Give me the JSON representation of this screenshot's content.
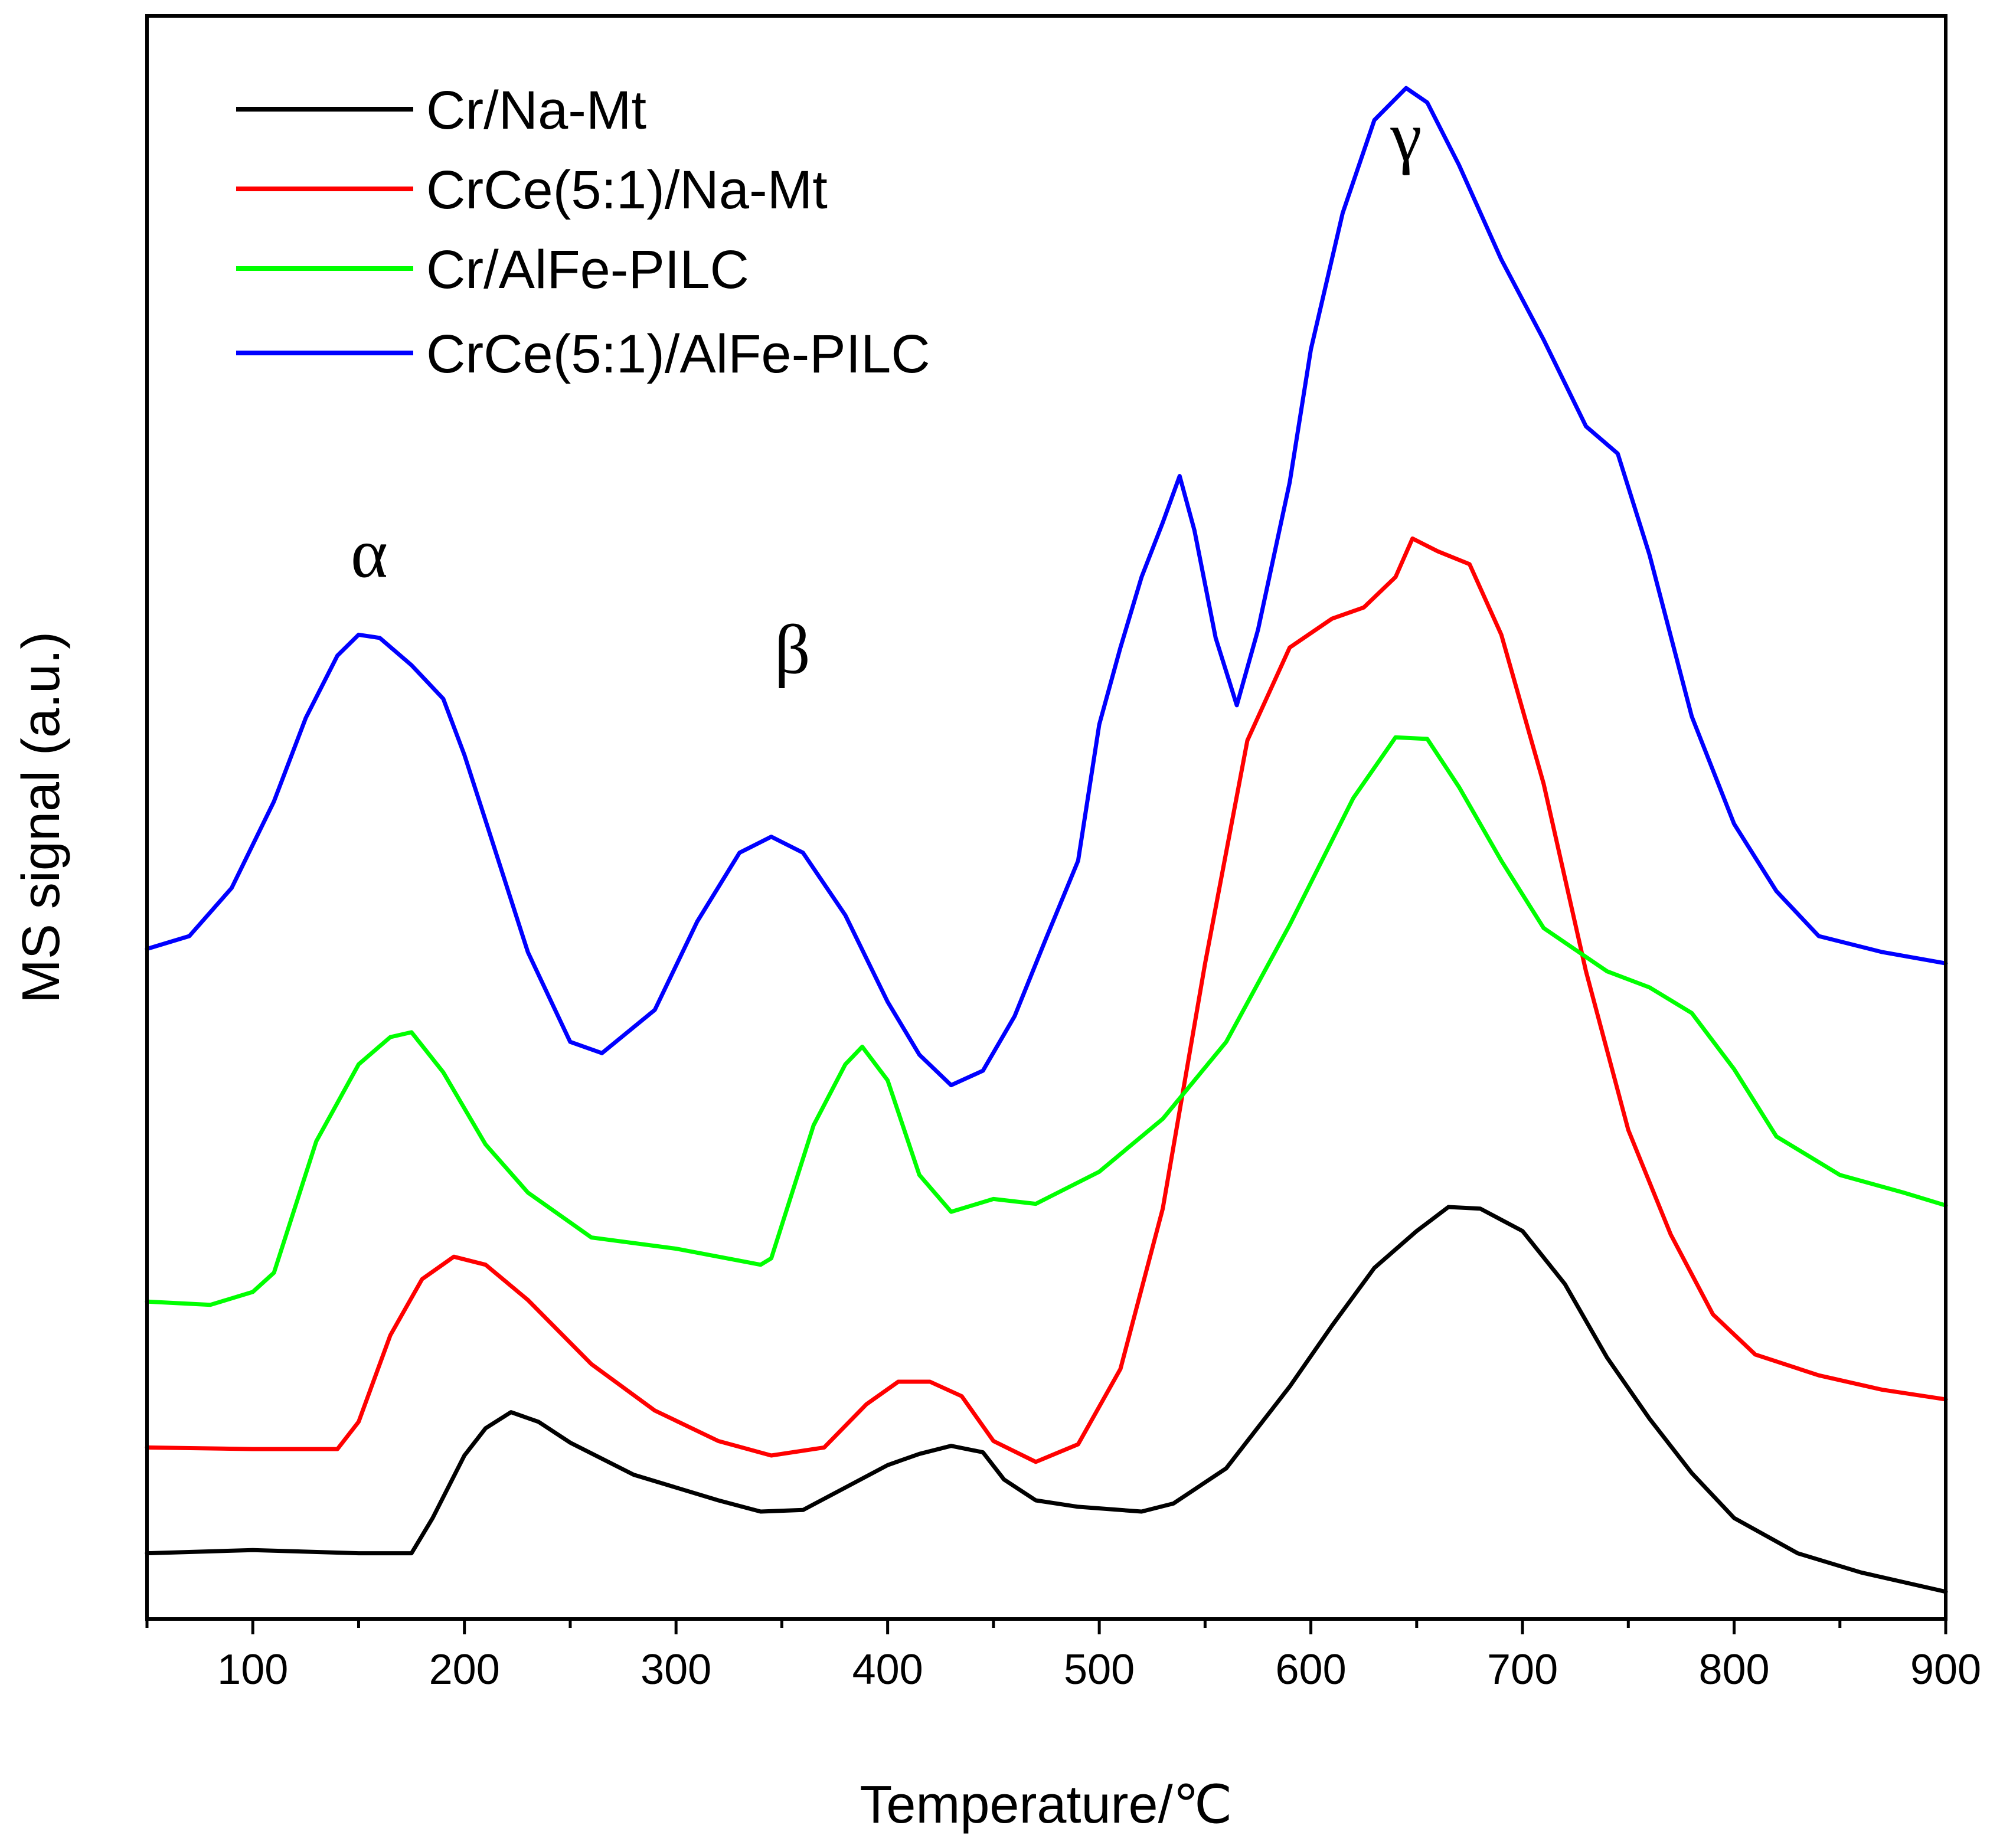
{
  "chart_data": {
    "type": "line",
    "title": "",
    "xlabel": "Temperature/℃",
    "ylabel": "MS signal (a.u.)",
    "xlim": [
      50,
      900
    ],
    "ylim": [
      0,
      100
    ],
    "xticks": [
      100,
      200,
      300,
      400,
      500,
      600,
      700,
      800,
      900
    ],
    "grid": false,
    "legend_position": "top-left",
    "annotations": [
      {
        "text": "α",
        "x": 155,
        "y": 65
      },
      {
        "text": "β",
        "x": 355,
        "y": 59
      },
      {
        "text": "γ",
        "x": 645,
        "y": 91
      }
    ],
    "series": [
      {
        "name": "Cr/Na-Mt",
        "color": "#000000",
        "x": [
          50,
          100,
          150,
          175,
          185,
          200,
          210,
          222,
          235,
          250,
          280,
          300,
          320,
          340,
          360,
          380,
          400,
          415,
          430,
          445,
          455,
          470,
          490,
          520,
          535,
          560,
          590,
          610,
          630,
          650,
          665,
          680,
          700,
          720,
          740,
          760,
          780,
          800,
          830,
          860,
          880,
          900
        ],
        "y": [
          4.1,
          4.3,
          4.1,
          4.1,
          6.3,
          10.2,
          11.9,
          12.9,
          12.3,
          11.0,
          9.0,
          8.2,
          7.4,
          6.7,
          6.8,
          8.2,
          9.6,
          10.3,
          10.8,
          10.4,
          8.7,
          7.4,
          7.0,
          6.7,
          7.2,
          9.4,
          14.5,
          18.3,
          21.9,
          24.2,
          25.7,
          25.6,
          24.2,
          20.9,
          16.3,
          12.5,
          9.1,
          6.3,
          4.1,
          2.9,
          2.3,
          1.7
        ]
      },
      {
        "name": "CrCe(5:1)/Na-Mt",
        "color": "#ff0000",
        "x": [
          50,
          100,
          140,
          150,
          165,
          180,
          195,
          210,
          230,
          260,
          290,
          320,
          345,
          370,
          390,
          405,
          420,
          435,
          450,
          470,
          490,
          510,
          530,
          550,
          570,
          590,
          610,
          625,
          640,
          648,
          660,
          675,
          690,
          710,
          730,
          750,
          770,
          790,
          810,
          840,
          870,
          900
        ],
        "y": [
          10.7,
          10.6,
          10.6,
          12.3,
          17.7,
          21.2,
          22.6,
          22.1,
          19.9,
          15.9,
          13.0,
          11.1,
          10.2,
          10.7,
          13.4,
          14.8,
          14.8,
          13.9,
          11.1,
          9.8,
          10.9,
          15.6,
          25.6,
          40.9,
          54.8,
          60.6,
          62.4,
          63.1,
          65.0,
          67.4,
          66.6,
          65.8,
          61.4,
          52.1,
          40.4,
          30.5,
          24.0,
          19.0,
          16.5,
          15.2,
          14.3,
          13.7
        ]
      },
      {
        "name": "Cr/AlFe-PILC",
        "color": "#00ff00",
        "x": [
          50,
          80,
          100,
          110,
          130,
          150,
          165,
          175,
          190,
          210,
          230,
          260,
          300,
          340,
          345,
          365,
          380,
          388,
          400,
          415,
          430,
          450,
          470,
          500,
          530,
          560,
          590,
          620,
          640,
          655,
          670,
          690,
          710,
          740,
          760,
          780,
          800,
          820,
          850,
          880,
          900
        ],
        "y": [
          19.8,
          19.6,
          20.4,
          21.6,
          29.8,
          34.6,
          36.3,
          36.6,
          34.1,
          29.6,
          26.6,
          23.8,
          23.1,
          22.1,
          22.5,
          30.8,
          34.6,
          35.7,
          33.6,
          27.7,
          25.4,
          26.2,
          25.9,
          27.9,
          31.2,
          36.0,
          43.3,
          51.2,
          55.0,
          54.9,
          51.9,
          47.3,
          43.1,
          40.4,
          39.4,
          37.8,
          34.3,
          30.1,
          27.7,
          26.6,
          25.8
        ]
      },
      {
        "name": "CrCe(5:1)/AlFe-PILC",
        "color": "#0000ff",
        "x": [
          50,
          70,
          90,
          110,
          125,
          140,
          150,
          160,
          175,
          190,
          200,
          210,
          230,
          250,
          265,
          290,
          310,
          330,
          345,
          360,
          380,
          400,
          415,
          430,
          445,
          460,
          475,
          490,
          500,
          510,
          520,
          530,
          538,
          545,
          555,
          565,
          575,
          590,
          600,
          615,
          630,
          645,
          655,
          670,
          690,
          710,
          730,
          745,
          760,
          780,
          800,
          820,
          840,
          870,
          900
        ],
        "y": [
          41.8,
          42.6,
          45.6,
          51.0,
          56.2,
          60.1,
          61.4,
          61.2,
          59.5,
          57.4,
          53.9,
          49.8,
          41.6,
          36.0,
          35.3,
          38.0,
          43.5,
          47.8,
          48.8,
          47.8,
          43.9,
          38.5,
          35.2,
          33.3,
          34.2,
          37.6,
          42.5,
          47.3,
          55.8,
          60.6,
          65.0,
          68.4,
          71.3,
          67.9,
          61.2,
          57.0,
          61.7,
          70.9,
          79.2,
          87.7,
          93.5,
          95.5,
          94.6,
          90.7,
          84.8,
          79.8,
          74.4,
          72.7,
          66.4,
          56.3,
          49.6,
          45.4,
          42.6,
          41.6,
          40.9
        ]
      }
    ]
  }
}
